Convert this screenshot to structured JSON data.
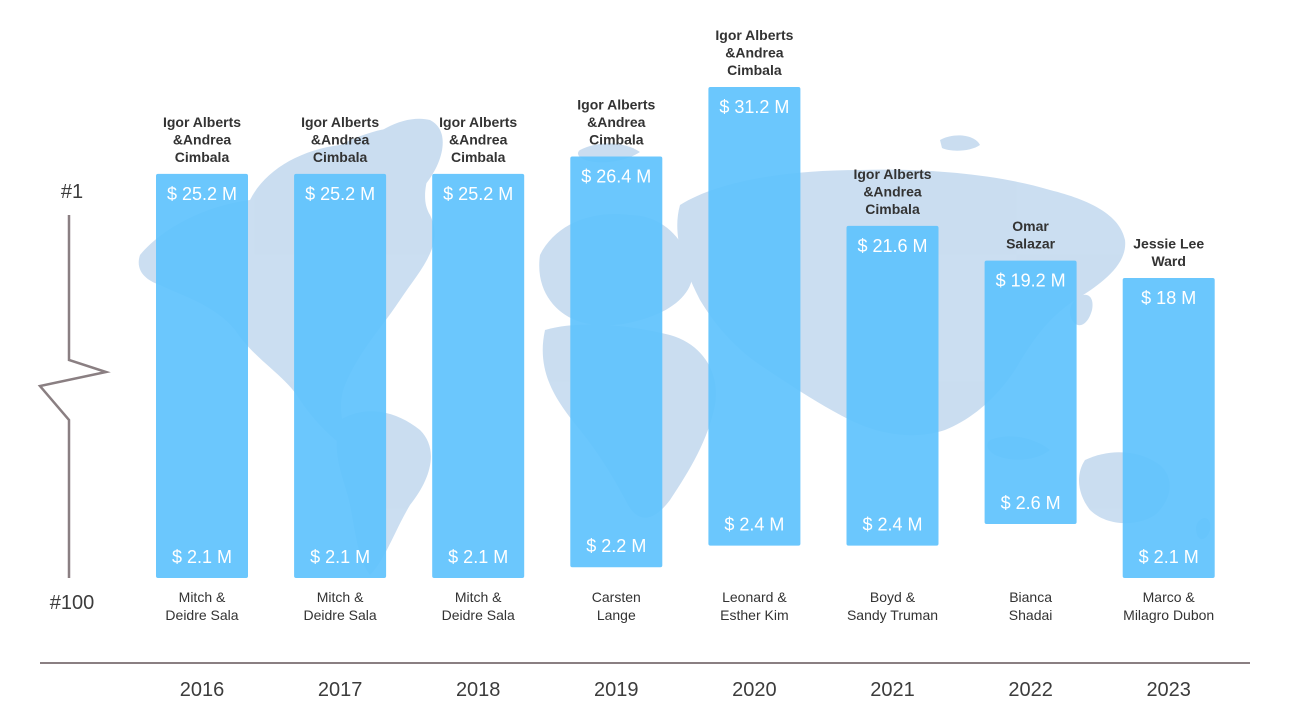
{
  "chart_data": {
    "type": "bar",
    "subtype": "floating-range",
    "categories": [
      "2016",
      "2017",
      "2018",
      "2019",
      "2020",
      "2021",
      "2022",
      "2023"
    ],
    "series": [
      {
        "values": [
          [
            2.1,
            25.2
          ],
          [
            2.1,
            25.2
          ],
          [
            2.1,
            25.2
          ],
          [
            2.2,
            26.4
          ],
          [
            2.4,
            31.2
          ],
          [
            2.4,
            21.6
          ],
          [
            2.6,
            19.2
          ],
          [
            2.1,
            18
          ]
        ]
      }
    ],
    "top_labels": [
      "$ 25.2 M",
      "$ 25.2 M",
      "$ 25.2 M",
      "$ 26.4 M",
      "$ 31.2 M",
      "$ 21.6 M",
      "$ 19.2 M",
      "$ 18 M"
    ],
    "bottom_labels": [
      "$ 2.1 M",
      "$ 2.1 M",
      "$ 2.1 M",
      "$ 2.2 M",
      "$ 2.4 M",
      "$ 2.4 M",
      "$ 2.6 M",
      "$ 2.1 M"
    ],
    "top_names": [
      [
        "Igor Alberts",
        "&Andrea",
        "Cimbala"
      ],
      [
        "Igor Alberts",
        "&Andrea",
        "Cimbala"
      ],
      [
        "Igor Alberts",
        "&Andrea",
        "Cimbala"
      ],
      [
        "Igor Alberts",
        "&Andrea",
        "Cimbala"
      ],
      [
        "Igor Alberts",
        "&Andrea",
        "Cimbala"
      ],
      [
        "Igor Alberts",
        "&Andrea",
        "Cimbala"
      ],
      [
        "Omar",
        "Salazar"
      ],
      [
        "Jessie Lee",
        "Ward"
      ]
    ],
    "bottom_names": [
      [
        "Mitch &",
        "Deidre Sala"
      ],
      [
        "Mitch &",
        "Deidre Sala"
      ],
      [
        "Mitch &",
        "Deidre Sala"
      ],
      [
        "Carsten",
        "Lange"
      ],
      [
        "Leonard &",
        "Esther Kim"
      ],
      [
        "Boyd &",
        "Sandy Truman"
      ],
      [
        "Bianca",
        "Shadai"
      ],
      [
        "Marco &",
        "Milagro Dubon"
      ]
    ],
    "axis_rank_labels": {
      "top": "#1",
      "bottom": "#100"
    },
    "axis_break": true,
    "ylim": [
      0,
      34
    ],
    "grid": false,
    "legend": "none",
    "background": "world-map"
  },
  "colors": {
    "bar": "#5ec2fd",
    "bar_text": "#ffffff",
    "map": "#c8dcf0",
    "text": "#333333",
    "axis_text": "#3c3c3c",
    "baseline": "#8a7f82",
    "axis_line": "#8a7f82"
  }
}
